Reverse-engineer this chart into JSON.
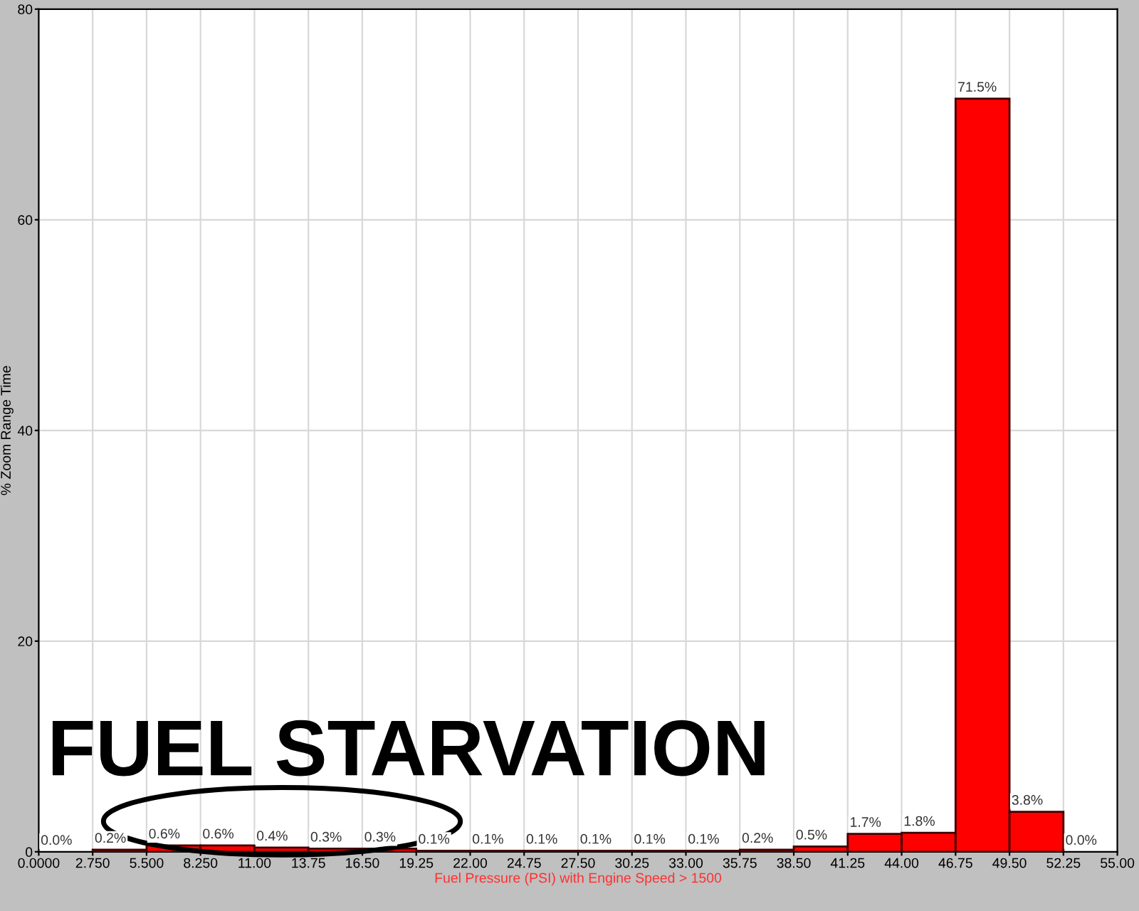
{
  "chart_data": {
    "type": "histogram",
    "xlabel": "Fuel Pressure (PSI) with Engine Speed > 1500",
    "ylabel": "% Zoom Range Time",
    "bins": [
      0,
      2.75,
      5.5,
      8.25,
      11,
      13.75,
      16.5,
      19.25,
      22,
      24.75,
      27.5,
      30.25,
      33,
      35.75,
      38.5,
      41.25,
      44,
      46.75,
      49.5,
      52.25,
      55
    ],
    "values": [
      0.0,
      0.2,
      0.6,
      0.6,
      0.4,
      0.3,
      0.3,
      0.1,
      0.1,
      0.1,
      0.1,
      0.1,
      0.1,
      0.2,
      0.5,
      1.7,
      1.8,
      71.5,
      3.8,
      0.0
    ],
    "value_labels": [
      "0.0%",
      "0.2%",
      "0.6%",
      "0.6%",
      "0.4%",
      "0.3%",
      "0.3%",
      "0.1%",
      "0.1%",
      "0.1%",
      "0.1%",
      "0.1%",
      "0.1%",
      "0.2%",
      "0.5%",
      "1.7%",
      "1.8%",
      "71.5%",
      "3.8%",
      "0.0%"
    ],
    "color": "#ff0000",
    "xlim": [
      0,
      55
    ],
    "ylim": [
      0,
      80
    ],
    "xticks": [
      {
        "value": 0,
        "label": "0.0000"
      },
      {
        "value": 2.75,
        "label": "2.750"
      },
      {
        "value": 5.5,
        "label": "5.500"
      },
      {
        "value": 8.25,
        "label": "8.250"
      },
      {
        "value": 11,
        "label": "11.00"
      },
      {
        "value": 13.75,
        "label": "13.75"
      },
      {
        "value": 16.5,
        "label": "16.50"
      },
      {
        "value": 19.25,
        "label": "19.25"
      },
      {
        "value": 22,
        "label": "22.00"
      },
      {
        "value": 24.75,
        "label": "24.75"
      },
      {
        "value": 27.5,
        "label": "27.50"
      },
      {
        "value": 30.25,
        "label": "30.25"
      },
      {
        "value": 33,
        "label": "33.00"
      },
      {
        "value": 35.75,
        "label": "35.75"
      },
      {
        "value": 38.5,
        "label": "38.50"
      },
      {
        "value": 41.25,
        "label": "41.25"
      },
      {
        "value": 44,
        "label": "44.00"
      },
      {
        "value": 46.75,
        "label": "46.75"
      },
      {
        "value": 49.5,
        "label": "49.50"
      },
      {
        "value": 52.25,
        "label": "52.25"
      },
      {
        "value": 55,
        "label": "55.00"
      }
    ],
    "yticks": [
      0,
      20,
      40,
      60,
      80
    ],
    "grid": true,
    "annotations": [
      "FUEL STARVATION"
    ]
  }
}
